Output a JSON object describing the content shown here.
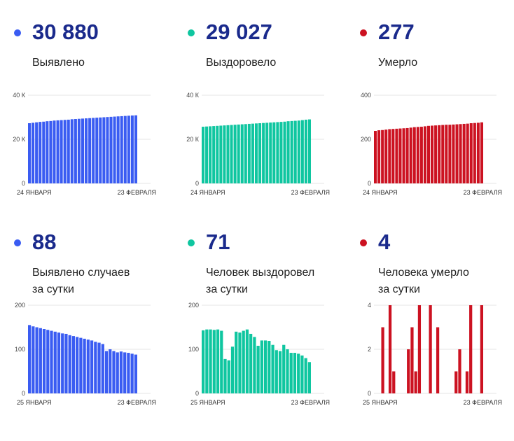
{
  "panels": [
    {
      "id": "detected-total",
      "color": "#3a5cf2",
      "value": "30 880",
      "label_lines": [
        "Выявлено"
      ],
      "chart_data": {
        "type": "bar",
        "y_ticks": [
          0,
          20000,
          40000
        ],
        "y_tick_labels": [
          "0",
          "20 К",
          "40 К"
        ],
        "ylim": [
          0,
          40000
        ],
        "x_labels": [
          "24 ЯНВАРЯ",
          "23 ФЕВРАЛЯ"
        ],
        "values": [
          27300,
          27500,
          27700,
          27900,
          28000,
          28200,
          28300,
          28500,
          28600,
          28700,
          28800,
          28900,
          29100,
          29200,
          29300,
          29400,
          29500,
          29600,
          29700,
          29800,
          29900,
          30000,
          30100,
          30200,
          30300,
          30400,
          30500,
          30600,
          30700,
          30800,
          30880
        ]
      }
    },
    {
      "id": "recovered-total",
      "color": "#0fc6a0",
      "value": "29 027",
      "label_lines": [
        "Выздоровело"
      ],
      "chart_data": {
        "type": "bar",
        "y_ticks": [
          0,
          20000,
          40000
        ],
        "y_tick_labels": [
          "0",
          "20 К",
          "40 К"
        ],
        "ylim": [
          0,
          40000
        ],
        "x_labels": [
          "24 ЯНВАРЯ",
          "23 ФЕВРАЛЯ"
        ],
        "values": [
          25700,
          25800,
          25900,
          26000,
          26100,
          26200,
          26300,
          26400,
          26500,
          26600,
          26700,
          26800,
          26900,
          27000,
          27100,
          27200,
          27300,
          27400,
          27500,
          27600,
          27700,
          27800,
          27900,
          28000,
          28200,
          28300,
          28400,
          28500,
          28700,
          28900,
          29027
        ]
      }
    },
    {
      "id": "died-total",
      "color": "#cc1221",
      "value": "277",
      "label_lines": [
        "Умерло"
      ],
      "chart_data": {
        "type": "bar",
        "y_ticks": [
          0,
          200,
          400
        ],
        "y_tick_labels": [
          "0",
          "200",
          "400"
        ],
        "ylim": [
          0,
          400
        ],
        "x_labels": [
          "24 ЯНВАРЯ",
          "23 ФЕВРАЛЯ"
        ],
        "values": [
          238,
          241,
          242,
          244,
          246,
          247,
          248,
          249,
          250,
          251,
          253,
          255,
          256,
          257,
          259,
          261,
          262,
          263,
          264,
          265,
          266,
          266,
          267,
          268,
          269,
          270,
          271,
          273,
          274,
          275,
          277
        ]
      }
    },
    {
      "id": "detected-daily",
      "color": "#3a5cf2",
      "value": "88",
      "label_lines": [
        "Выявлено случаев",
        "за сутки"
      ],
      "chart_data": {
        "type": "bar",
        "y_ticks": [
          0,
          100,
          200
        ],
        "y_tick_labels": [
          "0",
          "100",
          "200"
        ],
        "ylim": [
          0,
          200
        ],
        "x_labels": [
          "25 ЯНВАРЯ",
          "23 ФЕВРАЛЯ"
        ],
        "values": [
          155,
          152,
          150,
          148,
          146,
          144,
          142,
          140,
          138,
          136,
          135,
          132,
          130,
          128,
          126,
          124,
          122,
          120,
          117,
          115,
          112,
          96,
          100,
          96,
          93,
          95,
          93,
          92,
          90,
          88
        ]
      }
    },
    {
      "id": "recovered-daily",
      "color": "#0fc6a0",
      "value": "71",
      "label_lines": [
        "Человек выздоровел",
        "за сутки"
      ],
      "chart_data": {
        "type": "bar",
        "y_ticks": [
          0,
          100,
          200
        ],
        "y_tick_labels": [
          "0",
          "100",
          "200"
        ],
        "ylim": [
          0,
          200
        ],
        "x_labels": [
          "25 ЯНВАРЯ",
          "23 ФЕВРАЛЯ"
        ],
        "values": [
          143,
          145,
          145,
          144,
          145,
          142,
          78,
          75,
          106,
          140,
          138,
          142,
          145,
          135,
          128,
          108,
          120,
          120,
          119,
          110,
          98,
          96,
          110,
          100,
          92,
          92,
          90,
          86,
          80,
          71
        ]
      }
    },
    {
      "id": "died-daily",
      "color": "#cc1221",
      "value": "4",
      "label_lines": [
        "Человека умерло",
        "за сутки"
      ],
      "chart_data": {
        "type": "bar",
        "y_ticks": [
          0,
          2,
          4
        ],
        "y_tick_labels": [
          "0",
          "2",
          "4"
        ],
        "ylim": [
          0,
          4
        ],
        "x_labels": [
          "25 ЯНВАРЯ",
          "23 ФЕВРАЛЯ"
        ],
        "values": [
          0,
          0,
          3,
          0,
          4,
          1,
          0,
          0,
          0,
          2,
          3,
          1,
          4,
          0,
          0,
          4,
          0,
          3,
          0,
          0,
          0,
          0,
          1,
          2,
          0,
          1,
          4,
          0,
          0,
          4
        ]
      }
    }
  ]
}
